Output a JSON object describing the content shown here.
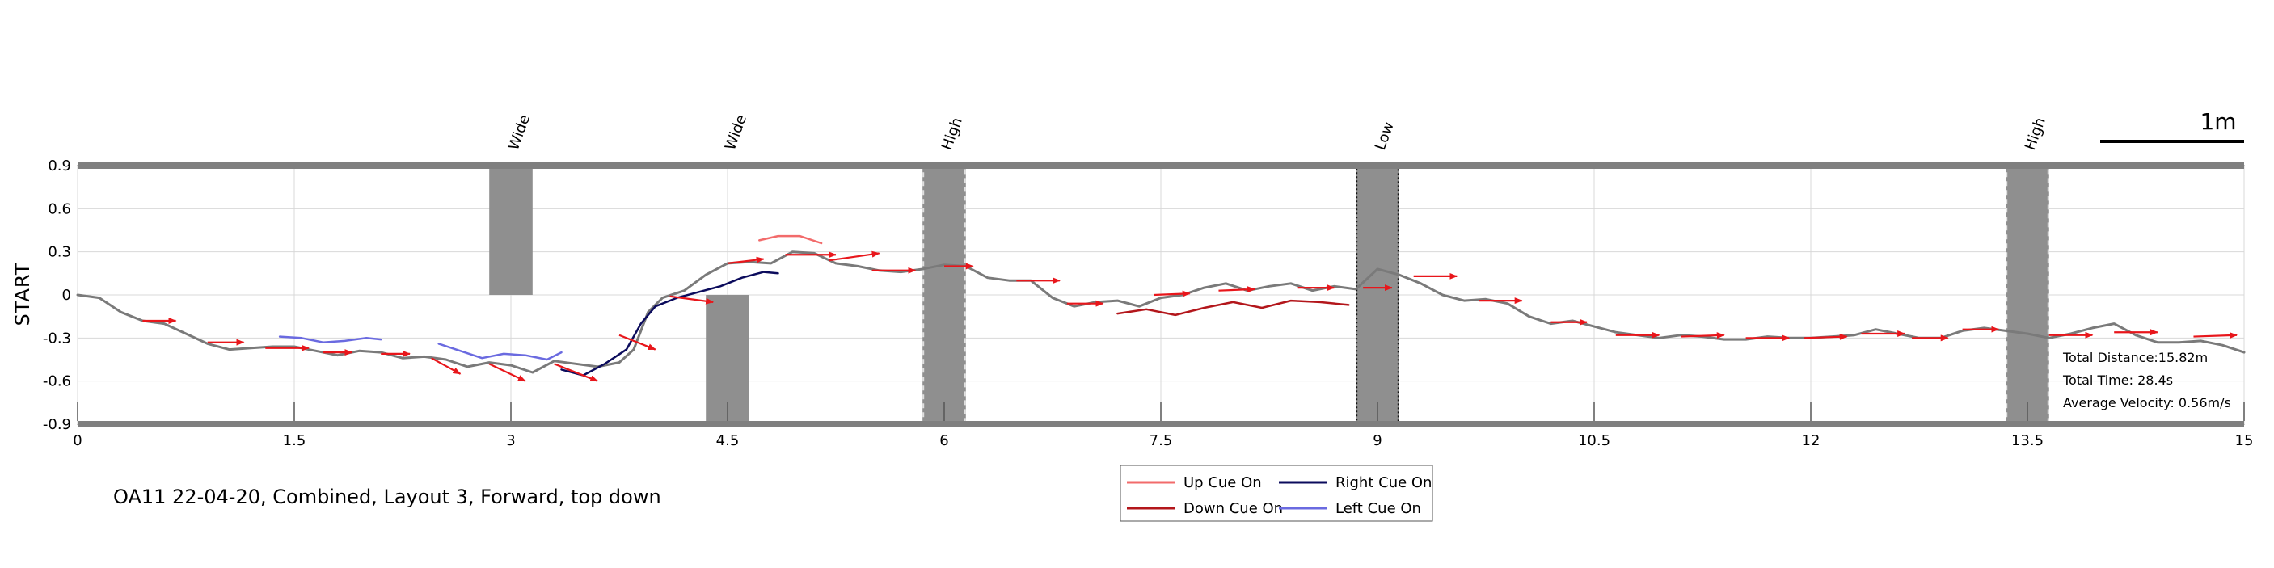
{
  "chart_data": {
    "type": "line",
    "title": "",
    "ylabel": "START",
    "xlabel": "",
    "xlim": [
      0,
      15
    ],
    "ylim": [
      -0.9,
      0.9
    ],
    "xticks": [
      0,
      1.5,
      3,
      4.5,
      6,
      7.5,
      9,
      10.5,
      12,
      13.5,
      15
    ],
    "xtick_labels": [
      "0",
      "1.5",
      "3",
      "4.5",
      "6",
      "7.5",
      "9",
      "10.5",
      "12",
      "13.5",
      "15"
    ],
    "yticks": [
      0.9,
      0.6,
      0.3,
      0,
      -0.3,
      -0.6,
      -0.9
    ],
    "ytick_labels": [
      "0.9",
      "0.6",
      "0.3",
      "0",
      "-0.3",
      "-0.6",
      "-0.9"
    ],
    "grid": true,
    "scale_bar_label": "1m",
    "caption": "OA11 22-04-20, Combined, Layout 3, Forward, top down",
    "stats": [
      "Total Distance:15.82m",
      "Total Time: 28.4s",
      "Average Velocity: 0.56m/s"
    ],
    "obstacles": [
      {
        "label": "Wide",
        "x0": 2.85,
        "x1": 3.15,
        "y0": 0.0,
        "y1": 0.9,
        "style": "solid"
      },
      {
        "label": "Wide",
        "x0": 4.35,
        "x1": 4.65,
        "y0": -0.9,
        "y1": 0.0,
        "style": "solid"
      },
      {
        "label": "High",
        "x0": 5.85,
        "x1": 6.15,
        "y0": -0.9,
        "y1": 0.9,
        "style": "dashed"
      },
      {
        "label": "Low",
        "x0": 8.85,
        "x1": 9.15,
        "y0": -0.9,
        "y1": 0.9,
        "style": "dotted"
      },
      {
        "label": "High",
        "x0": 13.35,
        "x1": 13.65,
        "y0": -0.9,
        "y1": 0.9,
        "style": "dashed"
      }
    ],
    "legend": {
      "placement": "bottom-center",
      "entries": [
        {
          "label": "Up Cue On",
          "color": "#f26b6b"
        },
        {
          "label": "Right Cue On",
          "color": "#0b0b5c"
        },
        {
          "label": "Down Cue On",
          "color": "#b3161b"
        },
        {
          "label": "Left Cue On",
          "color": "#6a6ae0"
        }
      ]
    },
    "series": [
      {
        "key": "path",
        "color": "#7a7a7a",
        "x": [
          0,
          0.15,
          0.3,
          0.45,
          0.6,
          0.75,
          0.9,
          1.05,
          1.2,
          1.35,
          1.5,
          1.65,
          1.8,
          1.95,
          2.1,
          2.25,
          2.4,
          2.55,
          2.7,
          2.85,
          3.0,
          3.15,
          3.3,
          3.45,
          3.6,
          3.75,
          3.85,
          3.95,
          4.05,
          4.2,
          4.35,
          4.5,
          4.65,
          4.8,
          4.95,
          5.1,
          5.25,
          5.4,
          5.55,
          5.7,
          5.85,
          6.0,
          6.15,
          6.3,
          6.45,
          6.6,
          6.75,
          6.9,
          7.05,
          7.2,
          7.35,
          7.5,
          7.65,
          7.8,
          7.95,
          8.1,
          8.25,
          8.4,
          8.55,
          8.7,
          8.85,
          9.0,
          9.15,
          9.3,
          9.45,
          9.6,
          9.75,
          9.9,
          10.05,
          10.2,
          10.35,
          10.5,
          10.65,
          10.8,
          10.95,
          11.1,
          11.25,
          11.4,
          11.55,
          11.7,
          11.85,
          12.0,
          12.15,
          12.3,
          12.45,
          12.6,
          12.75,
          12.9,
          13.05,
          13.2,
          13.35,
          13.5,
          13.65,
          13.8,
          13.95,
          14.1,
          14.25,
          14.4,
          14.55,
          14.7,
          14.85,
          15.0
        ],
        "y": [
          0.0,
          -0.02,
          -0.12,
          -0.18,
          -0.2,
          -0.27,
          -0.34,
          -0.38,
          -0.37,
          -0.36,
          -0.36,
          -0.39,
          -0.42,
          -0.39,
          -0.4,
          -0.44,
          -0.43,
          -0.45,
          -0.5,
          -0.47,
          -0.49,
          -0.54,
          -0.46,
          -0.48,
          -0.5,
          -0.47,
          -0.38,
          -0.12,
          -0.02,
          0.03,
          0.14,
          0.22,
          0.23,
          0.22,
          0.3,
          0.29,
          0.22,
          0.2,
          0.17,
          0.16,
          0.18,
          0.21,
          0.2,
          0.12,
          0.1,
          0.1,
          -0.02,
          -0.08,
          -0.05,
          -0.04,
          -0.08,
          -0.02,
          0.0,
          0.05,
          0.08,
          0.03,
          0.06,
          0.08,
          0.03,
          0.06,
          0.04,
          0.18,
          0.14,
          0.08,
          0.0,
          -0.04,
          -0.03,
          -0.06,
          -0.15,
          -0.2,
          -0.18,
          -0.22,
          -0.26,
          -0.28,
          -0.3,
          -0.28,
          -0.29,
          -0.31,
          -0.31,
          -0.29,
          -0.3,
          -0.3,
          -0.29,
          -0.28,
          -0.24,
          -0.27,
          -0.3,
          -0.3,
          -0.25,
          -0.23,
          -0.25,
          -0.27,
          -0.3,
          -0.27,
          -0.23,
          -0.2,
          -0.28,
          -0.33,
          -0.33,
          -0.32,
          -0.35,
          -0.4
        ]
      },
      {
        "key": "down_cue_1",
        "color": "#b3161b",
        "x": [
          7.2,
          7.4,
          7.6,
          7.8,
          8.0,
          8.2,
          8.4,
          8.6,
          8.8
        ],
        "y": [
          -0.13,
          -0.1,
          -0.14,
          -0.09,
          -0.05,
          -0.09,
          -0.04,
          -0.05,
          -0.07
        ]
      },
      {
        "key": "up_cue_1",
        "color": "#f26b6b",
        "x": [
          4.72,
          4.85,
          5.0,
          5.15
        ],
        "y": [
          0.38,
          0.41,
          0.41,
          0.36
        ]
      },
      {
        "key": "right_cue_1",
        "color": "#0b0b5c",
        "x": [
          3.35,
          3.5,
          3.65,
          3.8,
          3.9,
          4.0,
          4.15,
          4.3,
          4.45,
          4.6,
          4.75,
          4.85
        ],
        "y": [
          -0.52,
          -0.56,
          -0.48,
          -0.38,
          -0.2,
          -0.08,
          -0.02,
          0.02,
          0.06,
          0.12,
          0.16,
          0.15
        ]
      },
      {
        "key": "left_cue_1",
        "color": "#6a6ae0",
        "x": [
          1.4,
          1.55,
          1.7,
          1.85,
          2.0,
          2.1
        ],
        "y": [
          -0.29,
          -0.3,
          -0.33,
          -0.32,
          -0.3,
          -0.31
        ]
      },
      {
        "key": "left_cue_2",
        "color": "#6a6ae0",
        "x": [
          2.5,
          2.65,
          2.8,
          2.95,
          3.1,
          3.25,
          3.35
        ],
        "y": [
          -0.34,
          -0.39,
          -0.44,
          -0.41,
          -0.42,
          -0.45,
          -0.4
        ]
      }
    ],
    "arrows": [
      {
        "x0": 0.45,
        "y0": -0.18,
        "x1": 0.68,
        "y1": -0.18
      },
      {
        "x0": 0.9,
        "y0": -0.33,
        "x1": 1.15,
        "y1": -0.33
      },
      {
        "x0": 1.3,
        "y0": -0.37,
        "x1": 1.6,
        "y1": -0.37
      },
      {
        "x0": 1.7,
        "y0": -0.4,
        "x1": 1.9,
        "y1": -0.4
      },
      {
        "x0": 2.1,
        "y0": -0.41,
        "x1": 2.3,
        "y1": -0.41
      },
      {
        "x0": 2.45,
        "y0": -0.44,
        "x1": 2.65,
        "y1": -0.55
      },
      {
        "x0": 2.85,
        "y0": -0.48,
        "x1": 3.1,
        "y1": -0.6
      },
      {
        "x0": 3.3,
        "y0": -0.48,
        "x1": 3.6,
        "y1": -0.6
      },
      {
        "x0": 3.75,
        "y0": -0.28,
        "x1": 4.0,
        "y1": -0.38
      },
      {
        "x0": 4.1,
        "y0": -0.01,
        "x1": 4.4,
        "y1": -0.05
      },
      {
        "x0": 4.5,
        "y0": 0.22,
        "x1": 4.75,
        "y1": 0.25
      },
      {
        "x0": 4.9,
        "y0": 0.28,
        "x1": 5.25,
        "y1": 0.28
      },
      {
        "x0": 5.2,
        "y0": 0.24,
        "x1": 5.55,
        "y1": 0.29
      },
      {
        "x0": 5.5,
        "y0": 0.17,
        "x1": 5.8,
        "y1": 0.17
      },
      {
        "x0": 6.0,
        "y0": 0.2,
        "x1": 6.2,
        "y1": 0.2
      },
      {
        "x0": 6.5,
        "y0": 0.1,
        "x1": 6.8,
        "y1": 0.1
      },
      {
        "x0": 6.85,
        "y0": -0.06,
        "x1": 7.1,
        "y1": -0.06
      },
      {
        "x0": 7.45,
        "y0": 0.0,
        "x1": 7.7,
        "y1": 0.01
      },
      {
        "x0": 7.9,
        "y0": 0.03,
        "x1": 8.15,
        "y1": 0.04
      },
      {
        "x0": 8.45,
        "y0": 0.05,
        "x1": 8.7,
        "y1": 0.05
      },
      {
        "x0": 8.9,
        "y0": 0.05,
        "x1": 9.1,
        "y1": 0.05
      },
      {
        "x0": 9.25,
        "y0": 0.13,
        "x1": 9.55,
        "y1": 0.13
      },
      {
        "x0": 9.7,
        "y0": -0.04,
        "x1": 10.0,
        "y1": -0.04
      },
      {
        "x0": 10.2,
        "y0": -0.19,
        "x1": 10.45,
        "y1": -0.19
      },
      {
        "x0": 10.65,
        "y0": -0.28,
        "x1": 10.95,
        "y1": -0.28
      },
      {
        "x0": 11.1,
        "y0": -0.29,
        "x1": 11.4,
        "y1": -0.28
      },
      {
        "x0": 11.55,
        "y0": -0.3,
        "x1": 11.85,
        "y1": -0.3
      },
      {
        "x0": 11.95,
        "y0": -0.3,
        "x1": 12.25,
        "y1": -0.29
      },
      {
        "x0": 12.35,
        "y0": -0.27,
        "x1": 12.65,
        "y1": -0.27
      },
      {
        "x0": 12.7,
        "y0": -0.3,
        "x1": 12.95,
        "y1": -0.3
      },
      {
        "x0": 13.05,
        "y0": -0.24,
        "x1": 13.3,
        "y1": -0.24
      },
      {
        "x0": 13.65,
        "y0": -0.28,
        "x1": 13.95,
        "y1": -0.28
      },
      {
        "x0": 14.1,
        "y0": -0.26,
        "x1": 14.4,
        "y1": -0.26
      },
      {
        "x0": 14.65,
        "y0": -0.29,
        "x1": 14.95,
        "y1": -0.28
      }
    ]
  }
}
